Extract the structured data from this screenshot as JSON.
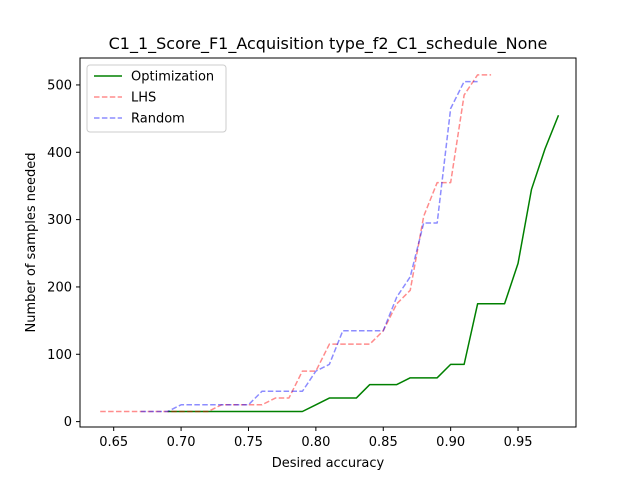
{
  "chart_data": {
    "type": "line",
    "title": "C1_1_Score_F1_Acquisition type_f2_C1_schedule_None",
    "xlabel": "Desired accuracy",
    "ylabel": "Number of samples needed",
    "xlim": [
      0.625,
      0.993
    ],
    "ylim": [
      -8,
      540
    ],
    "xticks": [
      0.65,
      0.7,
      0.75,
      0.8,
      0.85,
      0.9,
      0.95
    ],
    "xtick_labels": [
      "0.65",
      "0.70",
      "0.75",
      "0.80",
      "0.85",
      "0.90",
      "0.95"
    ],
    "yticks": [
      0,
      100,
      200,
      300,
      400,
      500
    ],
    "ytick_labels": [
      "0",
      "100",
      "200",
      "300",
      "400",
      "500"
    ],
    "grid": false,
    "legend_position": "top-left",
    "series": [
      {
        "name": "Optimization",
        "color": "#008000",
        "dash": "solid",
        "opacity": 1,
        "x": [
          0.69,
          0.7,
          0.71,
          0.72,
          0.73,
          0.74,
          0.75,
          0.76,
          0.77,
          0.78,
          0.79,
          0.8,
          0.81,
          0.82,
          0.83,
          0.84,
          0.85,
          0.86,
          0.87,
          0.88,
          0.89,
          0.9,
          0.91,
          0.92,
          0.93,
          0.94,
          0.95,
          0.96,
          0.97,
          0.98
        ],
        "y": [
          15,
          15,
          15,
          15,
          15,
          15,
          15,
          15,
          15,
          15,
          15,
          25,
          35,
          35,
          35,
          55,
          55,
          55,
          65,
          65,
          65,
          85,
          85,
          175,
          175,
          175,
          235,
          345,
          405,
          455
        ]
      },
      {
        "name": "LHS",
        "color": "#ff0000",
        "dash": "dashed",
        "opacity": 0.45,
        "x": [
          0.64,
          0.65,
          0.66,
          0.67,
          0.68,
          0.69,
          0.7,
          0.71,
          0.72,
          0.73,
          0.74,
          0.75,
          0.76,
          0.77,
          0.78,
          0.79,
          0.8,
          0.81,
          0.82,
          0.83,
          0.84,
          0.85,
          0.86,
          0.87,
          0.88,
          0.89,
          0.9,
          0.91,
          0.92,
          0.93
        ],
        "y": [
          15,
          15,
          15,
          15,
          15,
          15,
          15,
          15,
          15,
          25,
          25,
          25,
          25,
          35,
          35,
          75,
          75,
          115,
          115,
          115,
          115,
          135,
          175,
          195,
          305,
          355,
          355,
          485,
          515,
          515
        ]
      },
      {
        "name": "Random",
        "color": "#0000ff",
        "dash": "dashed",
        "opacity": 0.45,
        "x": [
          0.67,
          0.68,
          0.69,
          0.7,
          0.71,
          0.72,
          0.73,
          0.74,
          0.75,
          0.76,
          0.77,
          0.78,
          0.79,
          0.8,
          0.81,
          0.82,
          0.83,
          0.84,
          0.85,
          0.86,
          0.87,
          0.88,
          0.89,
          0.9,
          0.91,
          0.92
        ],
        "y": [
          15,
          15,
          15,
          25,
          25,
          25,
          25,
          25,
          25,
          45,
          45,
          45,
          45,
          75,
          85,
          135,
          135,
          135,
          135,
          185,
          215,
          295,
          295,
          465,
          505,
          505
        ]
      }
    ]
  }
}
